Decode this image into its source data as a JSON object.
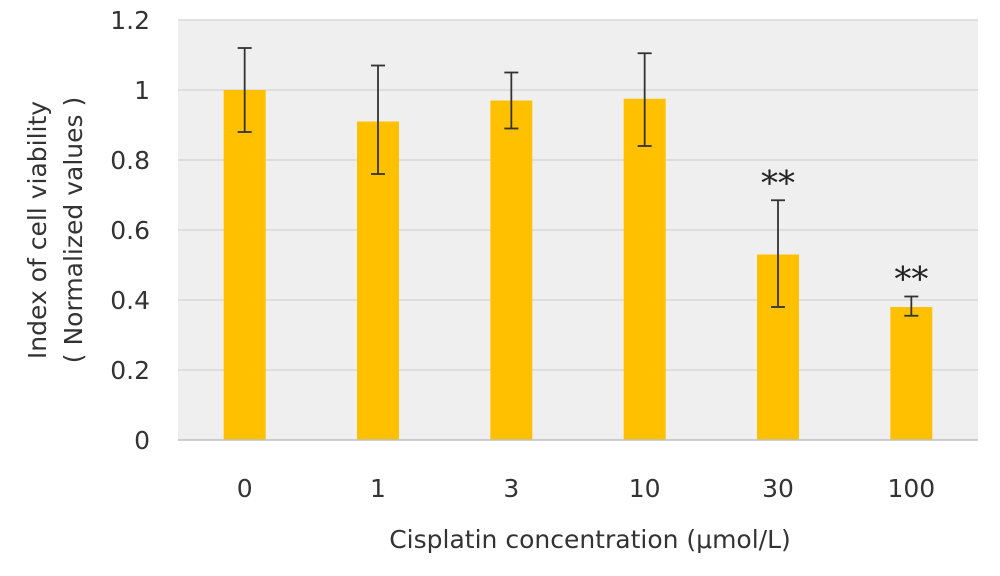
{
  "colors": {
    "bar": "#FFC000",
    "plot_background": "#EFEFEF",
    "gridline": "#D9D9D9",
    "axis_line": "#BFBFBF",
    "error_bar": "#333333",
    "text": "#333333"
  },
  "chart_data": {
    "type": "bar",
    "title": "",
    "xlabel": "Cisplatin concentration (μmol/L)",
    "ylabel": [
      "Index of cell viability",
      "( Normalized values )"
    ],
    "categories": [
      "0",
      "1",
      "3",
      "10",
      "30",
      "100"
    ],
    "series": [
      {
        "values": [
          1.0,
          0.91,
          0.97,
          0.975,
          0.53,
          0.38
        ],
        "error_low": [
          0.88,
          0.76,
          0.89,
          0.84,
          0.38,
          0.355
        ],
        "error_high": [
          1.12,
          1.07,
          1.05,
          1.105,
          0.685,
          0.41
        ]
      }
    ],
    "annotations": [
      "",
      "",
      "",
      "",
      "**",
      "**"
    ],
    "ylim": [
      0,
      1.2
    ],
    "yticks": [
      0,
      0.2,
      0.4,
      0.6,
      0.8,
      1,
      1.2
    ],
    "ytick_labels": [
      "0",
      "0.2",
      "0.4",
      "0.6",
      "0.8",
      "1",
      "1.2"
    ],
    "grid": true,
    "legend": "none"
  }
}
